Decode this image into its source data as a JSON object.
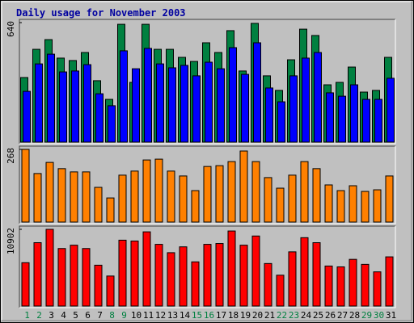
{
  "chart_data": [
    {
      "type": "bar",
      "title": "Daily usage for November 2003",
      "ylim": [
        0,
        640
      ],
      "yticks": [
        640
      ],
      "series": [
        {
          "color": "#008040",
          "values": [
            346,
            497,
            549,
            450,
            437,
            480,
            329,
            229,
            631,
            320,
            631,
            497,
            497,
            454,
            432,
            532,
            480,
            597,
            381,
            636,
            355,
            277,
            441,
            605,
            571,
            307,
            320,
            402,
            268,
            277,
            454
          ]
        },
        {
          "color": "#0000ff",
          "values": [
            272,
            419,
            471,
            376,
            381,
            415,
            259,
            195,
            489,
            393,
            502,
            419,
            398,
            411,
            355,
            428,
            393,
            506,
            363,
            532,
            290,
            216,
            355,
            450,
            480,
            264,
            246,
            307,
            229,
            229,
            342
          ]
        }
      ]
    },
    {
      "type": "bar",
      "ylim": [
        0,
        268
      ],
      "yticks": [
        268
      ],
      "series": [
        {
          "color": "#ff8000",
          "values": [
            268,
            179,
            220,
            197,
            185,
            185,
            128,
            89,
            173,
            188,
            229,
            232,
            188,
            170,
            116,
            205,
            208,
            223,
            262,
            223,
            164,
            125,
            173,
            223,
            197,
            137,
            116,
            134,
            113,
            119,
            170
          ]
        }
      ]
    },
    {
      "type": "bar",
      "ylim": [
        0,
        10902
      ],
      "yticks": [
        10902
      ],
      "categories": [
        "1",
        "2",
        "3",
        "4",
        "5",
        "6",
        "7",
        "8",
        "9",
        "10",
        "11",
        "12",
        "13",
        "14",
        "15",
        "16",
        "17",
        "18",
        "19",
        "20",
        "21",
        "22",
        "23",
        "24",
        "25",
        "26",
        "27",
        "28",
        "29",
        "30",
        "31"
      ],
      "category_colors": [
        "#008040",
        "#008040",
        "#000000",
        "#000000",
        "#000000",
        "#000000",
        "#000000",
        "#008040",
        "#008040",
        "#000000",
        "#000000",
        "#000000",
        "#000000",
        "#000000",
        "#008040",
        "#008040",
        "#000000",
        "#000000",
        "#000000",
        "#000000",
        "#000000",
        "#008040",
        "#008040",
        "#000000",
        "#000000",
        "#000000",
        "#000000",
        "#000000",
        "#008040",
        "#008040",
        "#000000"
      ],
      "series": [
        {
          "color": "#ff0000",
          "values": [
            6162,
            9006,
            10902,
            8177,
            8651,
            8177,
            5807,
            4266,
            9362,
            9243,
            10547,
            8769,
            7584,
            8414,
            6281,
            8769,
            8888,
            10665,
            8651,
            9954,
            6044,
            4385,
            7703,
            9717,
            9006,
            5688,
            5570,
            6636,
            5925,
            4859,
            6992
          ]
        }
      ]
    }
  ]
}
